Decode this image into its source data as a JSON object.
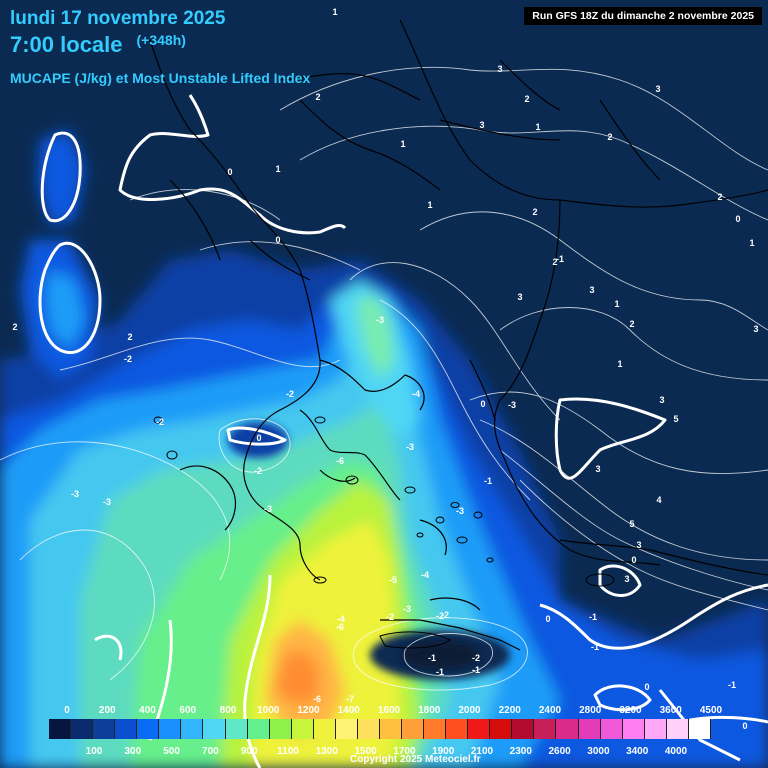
{
  "title": {
    "date": "lundi 17 novembre 2025",
    "time": "7:00 locale",
    "offset": "(+348h)",
    "subtitle": "MUCAPE (J/kg) et Most Unstable Lifted Index"
  },
  "run_info": "Run GFS 18Z du dimanche 2 novembre 2025",
  "copyright": "Copyright 2025 Meteociel.fr",
  "legend": {
    "top_labels": [
      "0",
      "200",
      "400",
      "600",
      "800",
      "1000",
      "1200",
      "1400",
      "1600",
      "1800",
      "2000",
      "2200",
      "2400",
      "2800",
      "3200",
      "3600",
      "4500"
    ],
    "bottom_labels": [
      "100",
      "300",
      "500",
      "700",
      "900",
      "1100",
      "1300",
      "1500",
      "1700",
      "1900",
      "2100",
      "2300",
      "2600",
      "3000",
      "3400",
      "4000"
    ],
    "colors": [
      "#06163f",
      "#0a2b6e",
      "#0c3f9a",
      "#0b4fd0",
      "#0a6cf5",
      "#1a90ff",
      "#33b4ff",
      "#4fd6f5",
      "#5ee8c8",
      "#64f08c",
      "#8ef04a",
      "#c6f53a",
      "#eef23a",
      "#fff275",
      "#ffe05a",
      "#ffc040",
      "#ff9f3a",
      "#ff7a2a",
      "#ff4e1f",
      "#f01818",
      "#d40c0c",
      "#b30b2f",
      "#c81e5a",
      "#d92b8a",
      "#e43bb8",
      "#f05ad8",
      "#ff7ef0",
      "#ffa8f5",
      "#ffd0fa",
      "#ffffff"
    ]
  },
  "contour_labels": [
    "1",
    "3",
    "2",
    "2",
    "1",
    "3",
    "1",
    "2",
    "3",
    "0",
    "1",
    "2",
    "1",
    "-1",
    "2",
    "3",
    "2",
    "0",
    "1",
    "3",
    "3",
    "2",
    "1",
    "1",
    "2",
    "2",
    "-3",
    "-4",
    "-2",
    "-2",
    "-2",
    "0",
    "-3",
    "-3",
    "-3",
    "-2",
    "-6",
    "-3",
    "-4",
    "-1",
    "-3",
    "-2",
    "-5",
    "-4",
    "-6",
    "-3",
    "-2",
    "0",
    "-1",
    "-1",
    "0",
    "-3",
    "-2",
    "-1",
    "-6",
    "-7",
    "0",
    "3",
    "3",
    "5",
    "3",
    "4",
    "5",
    "3",
    "0",
    "0",
    "-1",
    "-1",
    "-1",
    "-2",
    "0"
  ]
}
